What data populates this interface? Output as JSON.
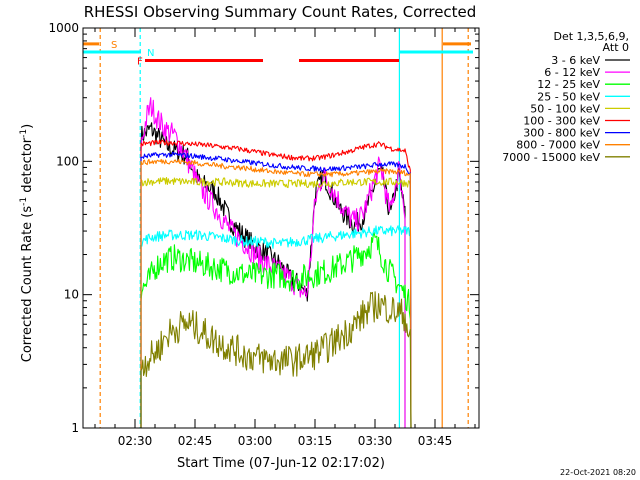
{
  "chart_data": {
    "type": "line",
    "title": "RHESSI Observing Summary Count Rates, Corrected",
    "xlabel": "Start Time (07-Jun-12 02:17:02)",
    "ylabel": "Corrected Count Rate (s⁻¹ detector⁻¹)",
    "ylabel_main": "Corrected Count Rate (s",
    "ylabel_mid": " detector",
    "ylabel_sup": "-1",
    "ylabel_close": ")",
    "yscale": "log",
    "xlim_min": [
      17,
      116
    ],
    "ylim": [
      1,
      1000
    ],
    "x_ticks": [
      {
        "min": 30,
        "label": "02:30"
      },
      {
        "min": 45,
        "label": "02:45"
      },
      {
        "min": 60,
        "label": "03:00"
      },
      {
        "min": 75,
        "label": "03:15"
      },
      {
        "min": 90,
        "label": "03:30"
      },
      {
        "min": 105,
        "label": "03:45"
      }
    ],
    "y_ticks": [
      {
        "value": 1,
        "label": "1"
      },
      {
        "value": 10,
        "label": "10"
      },
      {
        "value": 100,
        "label": "100"
      },
      {
        "value": 1000,
        "label": "1000"
      }
    ],
    "legend": {
      "header_line1": "Det 1,3,5,6,9,",
      "header_line2": "Att 0",
      "placement": "right"
    },
    "series": [
      {
        "name": "3 - 6 keV",
        "color": "#000000",
        "points": [
          [
            31.5,
            155
          ],
          [
            34,
            175
          ],
          [
            36,
            150
          ],
          [
            38,
            130
          ],
          [
            40,
            120
          ],
          [
            43,
            110
          ],
          [
            46,
            70
          ],
          [
            50,
            60
          ],
          [
            54,
            35
          ],
          [
            57,
            28
          ],
          [
            60,
            23
          ],
          [
            63,
            20
          ],
          [
            66,
            17
          ],
          [
            69,
            13
          ],
          [
            71,
            12
          ],
          [
            73,
            10
          ],
          [
            74,
            22
          ],
          [
            75,
            55
          ],
          [
            77,
            80
          ],
          [
            79,
            60
          ],
          [
            81,
            45
          ],
          [
            83,
            38
          ],
          [
            85,
            33
          ],
          [
            87,
            38
          ],
          [
            89,
            55
          ],
          [
            91,
            85
          ],
          [
            92,
            75
          ],
          [
            93,
            50
          ],
          [
            94,
            40
          ],
          [
            95,
            60
          ],
          [
            96,
            80
          ],
          [
            97.5,
            40
          ]
        ]
      },
      {
        "name": "6 - 12 keV",
        "color": "#ff00ff",
        "points": [
          [
            31.5,
            130
          ],
          [
            33,
            220
          ],
          [
            34,
            260
          ],
          [
            36,
            200
          ],
          [
            38,
            170
          ],
          [
            40,
            155
          ],
          [
            42,
            120
          ],
          [
            44,
            90
          ],
          [
            46,
            65
          ],
          [
            50,
            45
          ],
          [
            54,
            30
          ],
          [
            57,
            25
          ],
          [
            60,
            20
          ],
          [
            63,
            17
          ],
          [
            66,
            15
          ],
          [
            69,
            13
          ],
          [
            71,
            11
          ],
          [
            73,
            10
          ],
          [
            74,
            20
          ],
          [
            75,
            50
          ],
          [
            77,
            80
          ],
          [
            79,
            65
          ],
          [
            81,
            50
          ],
          [
            83,
            40
          ],
          [
            85,
            35
          ],
          [
            87,
            40
          ],
          [
            89,
            60
          ],
          [
            91,
            90
          ],
          [
            92,
            80
          ],
          [
            93,
            50
          ],
          [
            94,
            42
          ],
          [
            95,
            65
          ],
          [
            96,
            90
          ],
          [
            97.5,
            40
          ]
        ]
      },
      {
        "name": "12 - 25 keV",
        "color": "#00ff00",
        "points": [
          [
            31.5,
            11
          ],
          [
            33,
            12
          ],
          [
            35,
            16
          ],
          [
            37,
            18
          ],
          [
            40,
            19
          ],
          [
            43,
            18
          ],
          [
            46,
            17
          ],
          [
            50,
            16
          ],
          [
            54,
            15
          ],
          [
            58,
            14
          ],
          [
            62,
            14
          ],
          [
            66,
            14
          ],
          [
            70,
            13
          ],
          [
            74,
            14
          ],
          [
            78,
            15
          ],
          [
            82,
            17
          ],
          [
            85,
            19
          ],
          [
            88,
            22
          ],
          [
            90,
            25
          ],
          [
            91,
            22
          ],
          [
            93,
            16
          ],
          [
            95,
            13
          ],
          [
            97.5,
            10
          ],
          [
            99,
            8
          ]
        ]
      },
      {
        "name": "25 - 50 keV",
        "color": "#00ffff",
        "points": [
          [
            31.5,
            25
          ],
          [
            34,
            27
          ],
          [
            38,
            28
          ],
          [
            42,
            28
          ],
          [
            46,
            28
          ],
          [
            50,
            27
          ],
          [
            54,
            26
          ],
          [
            58,
            25
          ],
          [
            62,
            25
          ],
          [
            66,
            24
          ],
          [
            70,
            25
          ],
          [
            74,
            26
          ],
          [
            78,
            27
          ],
          [
            82,
            28
          ],
          [
            86,
            29
          ],
          [
            90,
            30
          ],
          [
            94,
            30
          ],
          [
            97.5,
            30
          ],
          [
            99,
            30
          ]
        ]
      },
      {
        "name": "50 - 100 keV",
        "color": "#cccc00",
        "points": [
          [
            31.5,
            70
          ],
          [
            36,
            71
          ],
          [
            40,
            71
          ],
          [
            44,
            70
          ],
          [
            48,
            70
          ],
          [
            52,
            70
          ],
          [
            56,
            69
          ],
          [
            60,
            68
          ],
          [
            64,
            68
          ],
          [
            68,
            68
          ],
          [
            72,
            68
          ],
          [
            76,
            68
          ],
          [
            80,
            69
          ],
          [
            84,
            70
          ],
          [
            88,
            70
          ],
          [
            92,
            70
          ],
          [
            96,
            70
          ],
          [
            99,
            68
          ]
        ]
      },
      {
        "name": "100 - 300 keV",
        "color": "#ff0000",
        "points": [
          [
            31.5,
            135
          ],
          [
            36,
            138
          ],
          [
            40,
            138
          ],
          [
            44,
            135
          ],
          [
            48,
            132
          ],
          [
            52,
            128
          ],
          [
            56,
            124
          ],
          [
            60,
            118
          ],
          [
            64,
            112
          ],
          [
            68,
            108
          ],
          [
            72,
            105
          ],
          [
            76,
            106
          ],
          [
            80,
            112
          ],
          [
            84,
            120
          ],
          [
            88,
            130
          ],
          [
            91,
            135
          ],
          [
            94,
            125
          ],
          [
            97.5,
            120
          ],
          [
            99,
            80
          ]
        ]
      },
      {
        "name": "300 - 800 keV",
        "color": "#0000ff",
        "points": [
          [
            31.5,
            108
          ],
          [
            36,
            112
          ],
          [
            40,
            112
          ],
          [
            44,
            110
          ],
          [
            48,
            107
          ],
          [
            52,
            104
          ],
          [
            56,
            100
          ],
          [
            60,
            97
          ],
          [
            64,
            94
          ],
          [
            68,
            91
          ],
          [
            72,
            89
          ],
          [
            76,
            88
          ],
          [
            80,
            88
          ],
          [
            84,
            90
          ],
          [
            88,
            92
          ],
          [
            91,
            95
          ],
          [
            94,
            95
          ],
          [
            97.5,
            92
          ],
          [
            99,
            80
          ]
        ]
      },
      {
        "name": "800 - 7000 keV",
        "color": "#ff8000",
        "points": [
          [
            31.5,
            98
          ],
          [
            36,
            100
          ],
          [
            40,
            100
          ],
          [
            44,
            98
          ],
          [
            48,
            95
          ],
          [
            52,
            92
          ],
          [
            56,
            90
          ],
          [
            60,
            87
          ],
          [
            64,
            84
          ],
          [
            68,
            82
          ],
          [
            72,
            80
          ],
          [
            76,
            80
          ],
          [
            80,
            80
          ],
          [
            84,
            81
          ],
          [
            88,
            83
          ],
          [
            91,
            84
          ],
          [
            94,
            84
          ],
          [
            97.5,
            82
          ],
          [
            99,
            78
          ]
        ]
      },
      {
        "name": "7000 - 15000 keV",
        "color": "#808000",
        "points": [
          [
            31.5,
            3
          ],
          [
            34,
            3.4
          ],
          [
            36,
            4
          ],
          [
            38,
            5
          ],
          [
            40,
            5.5
          ],
          [
            42,
            6
          ],
          [
            44,
            6
          ],
          [
            46,
            5.5
          ],
          [
            48,
            5
          ],
          [
            50,
            4.5
          ],
          [
            54,
            4
          ],
          [
            58,
            3.5
          ],
          [
            62,
            3.3
          ],
          [
            66,
            3.2
          ],
          [
            70,
            3.2
          ],
          [
            74,
            3.5
          ],
          [
            78,
            4
          ],
          [
            82,
            5
          ],
          [
            85,
            6
          ],
          [
            87,
            7
          ],
          [
            89,
            8
          ],
          [
            91,
            8.5
          ],
          [
            93,
            8
          ],
          [
            95,
            7.5
          ],
          [
            97.5,
            7
          ],
          [
            99,
            4
          ]
        ]
      }
    ],
    "flags": [
      {
        "label": "S",
        "color": "#ff8000",
        "level": 760,
        "segments": [
          [
            17,
            21
          ]
        ]
      },
      {
        "label": "N",
        "color": "#00ffff",
        "level": 660,
        "segments": [
          [
            17,
            31.5
          ],
          [
            96,
            114.5
          ]
        ]
      },
      {
        "label": "F",
        "color": "#ff0000",
        "level": 570,
        "segments": [
          [
            32.5,
            62
          ],
          [
            71,
            96
          ]
        ]
      },
      {
        "label": "",
        "color": "#ff8000",
        "level": 760,
        "segments": [
          [
            107,
            114
          ]
        ]
      }
    ],
    "flag_labels": [
      {
        "text": "S",
        "color": "#ff8000",
        "x": 24,
        "y": 760
      },
      {
        "text": "N",
        "color": "#00ffff",
        "x": 33,
        "y": 660
      },
      {
        "text": "F",
        "color": "#ff0000",
        "x": 30.5,
        "y": 570
      }
    ],
    "vlines": [
      {
        "x": 21.3,
        "color": "#ff8000",
        "style": "dashed"
      },
      {
        "x": 31.3,
        "color": "#00ffff",
        "style": "dashed"
      },
      {
        "x": 96.1,
        "color": "#00ffff",
        "style": "solid"
      },
      {
        "x": 106.8,
        "color": "#ff8000",
        "style": "solid"
      },
      {
        "x": 113.3,
        "color": "#ff8000",
        "style": "dashed"
      }
    ],
    "footer_stamp": "22-Oct-2021 08:20"
  }
}
